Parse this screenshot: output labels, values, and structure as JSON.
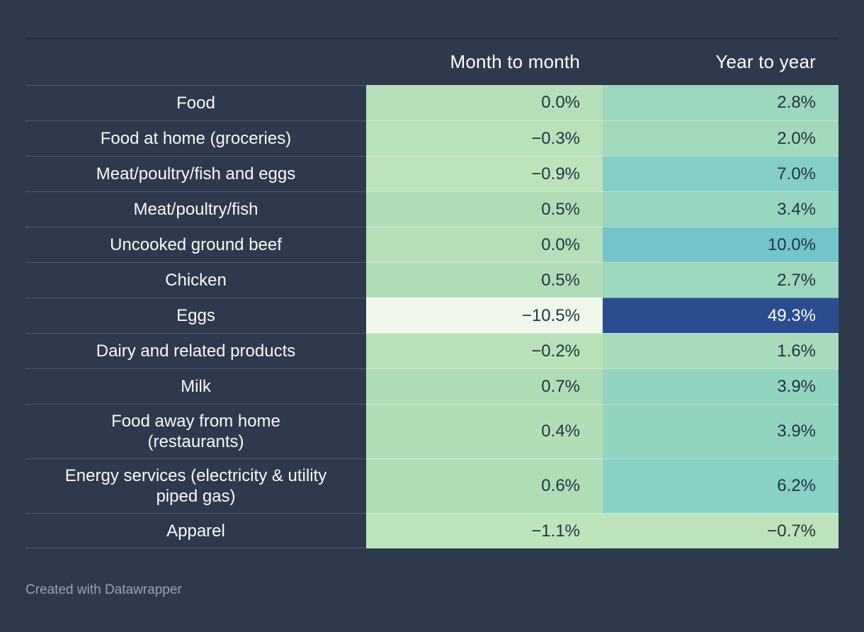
{
  "page": {
    "background_color": "#2e3a4c"
  },
  "header": {
    "columns": [
      "Month to month",
      "Year to year"
    ]
  },
  "table": {
    "rows": [
      {
        "label": "Food",
        "m2m": "0.0%",
        "y2y": "2.8%",
        "m2m_bg": "#b4dfb8",
        "y2y_bg": "#9cd6bc",
        "m2m_fg": "#253341",
        "y2y_fg": "#253341"
      },
      {
        "label": "Food at home (groceries)",
        "m2m": "−0.3%",
        "y2y": "2.0%",
        "m2m_bg": "#b9e1ba",
        "y2y_bg": "#a3d9bb",
        "m2m_fg": "#253341",
        "y2y_fg": "#253341"
      },
      {
        "label": "Meat/poultry/fish and eggs",
        "m2m": "−0.9%",
        "y2y": "7.0%",
        "m2m_bg": "#bde3bc",
        "y2y_bg": "#83cfc8",
        "m2m_fg": "#253341",
        "y2y_fg": "#253341"
      },
      {
        "label": "Meat/poultry/fish",
        "m2m": "0.5%",
        "y2y": "3.4%",
        "m2m_bg": "#b0ddb7",
        "y2y_bg": "#97d5c0",
        "m2m_fg": "#253341",
        "y2y_fg": "#253341"
      },
      {
        "label": "Uncooked ground beef",
        "m2m": "0.0%",
        "y2y": "10.0%",
        "m2m_bg": "#b4dfb8",
        "y2y_bg": "#72c6cb",
        "m2m_fg": "#253341",
        "y2y_fg": "#253341"
      },
      {
        "label": "Chicken",
        "m2m": "0.5%",
        "y2y": "2.7%",
        "m2m_bg": "#b0ddb7",
        "y2y_bg": "#9dd7bd",
        "m2m_fg": "#253341",
        "y2y_fg": "#253341"
      },
      {
        "label": "Eggs",
        "m2m": "−10.5%",
        "y2y": "49.3%",
        "m2m_bg": "#eff7ea",
        "y2y_bg": "#2a4d8f",
        "m2m_fg": "#253341",
        "y2y_fg": "#ffffff"
      },
      {
        "label": "Dairy and related products",
        "m2m": "−0.2%",
        "y2y": "1.6%",
        "m2m_bg": "#b8e1b9",
        "y2y_bg": "#a8dbba",
        "m2m_fg": "#253341",
        "y2y_fg": "#253341"
      },
      {
        "label": "Milk",
        "m2m": "0.7%",
        "y2y": "3.9%",
        "m2m_bg": "#aedcb6",
        "y2y_bg": "#93d4c0",
        "m2m_fg": "#253341",
        "y2y_fg": "#253341"
      },
      {
        "label": "Food away from home\n(restaurants)",
        "m2m": "0.4%",
        "y2y": "3.9%",
        "m2m_bg": "#b1deb7",
        "y2y_bg": "#93d4c0",
        "m2m_fg": "#253341",
        "y2y_fg": "#253341"
      },
      {
        "label": "Energy services (electricity & utility\npiped gas)",
        "m2m": "0.6%",
        "y2y": "6.2%",
        "m2m_bg": "#afddb6",
        "y2y_bg": "#88d1c6",
        "m2m_fg": "#253341",
        "y2y_fg": "#253341"
      },
      {
        "label": "Apparel",
        "m2m": "−1.1%",
        "y2y": "−0.7%",
        "m2m_bg": "#bee4bd",
        "y2y_bg": "#bce3bc",
        "m2m_fg": "#253341",
        "y2y_fg": "#253341"
      }
    ]
  },
  "footer": {
    "credit": "Created with Datawrapper"
  },
  "chart_data": {
    "type": "heatmap",
    "title": "",
    "unit": "%",
    "categories": [
      "Food",
      "Food at home (groceries)",
      "Meat/poultry/fish and eggs",
      "Meat/poultry/fish",
      "Uncooked ground beef",
      "Chicken",
      "Eggs",
      "Dairy and related products",
      "Milk",
      "Food away from home (restaurants)",
      "Energy services (electricity & utility piped gas)",
      "Apparel"
    ],
    "series": [
      {
        "name": "Month to month",
        "values": [
          0.0,
          -0.3,
          -0.9,
          0.5,
          0.0,
          0.5,
          -10.5,
          -0.2,
          0.7,
          0.4,
          0.6,
          -1.1
        ]
      },
      {
        "name": "Year to year",
        "values": [
          2.8,
          2.0,
          7.0,
          3.4,
          10.0,
          2.7,
          49.3,
          1.6,
          3.9,
          3.9,
          6.2,
          -0.7
        ]
      }
    ],
    "legend_position": "none",
    "grid": false,
    "color_scale": {
      "low_color": "#eff7ea",
      "mid_color": "#83cfc8",
      "high_color": "#2a4d8f"
    },
    "credit": "Created with Datawrapper"
  }
}
